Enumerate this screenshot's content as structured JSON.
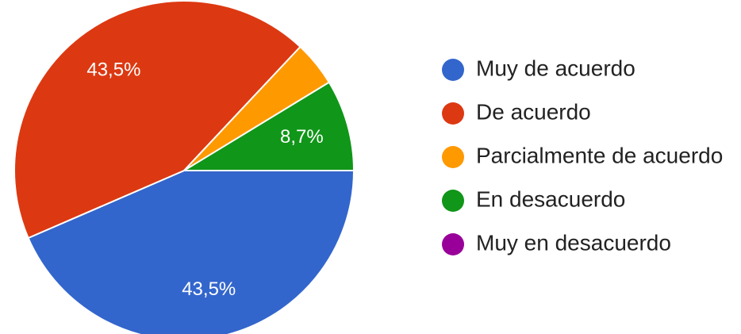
{
  "chart_data": {
    "type": "pie",
    "categories": [
      "Muy de acuerdo",
      "De acuerdo",
      "Parcialmente de acuerdo",
      "En desacuerdo",
      "Muy en desacuerdo"
    ],
    "values": [
      43.5,
      43.5,
      4.3,
      8.7,
      0
    ],
    "value_labels": [
      "43,5%",
      "43,5%",
      null,
      "8,7%",
      null
    ],
    "colors": [
      "#3366cc",
      "#dc3912",
      "#ff9900",
      "#109618",
      "#990099"
    ],
    "legend": "right"
  }
}
